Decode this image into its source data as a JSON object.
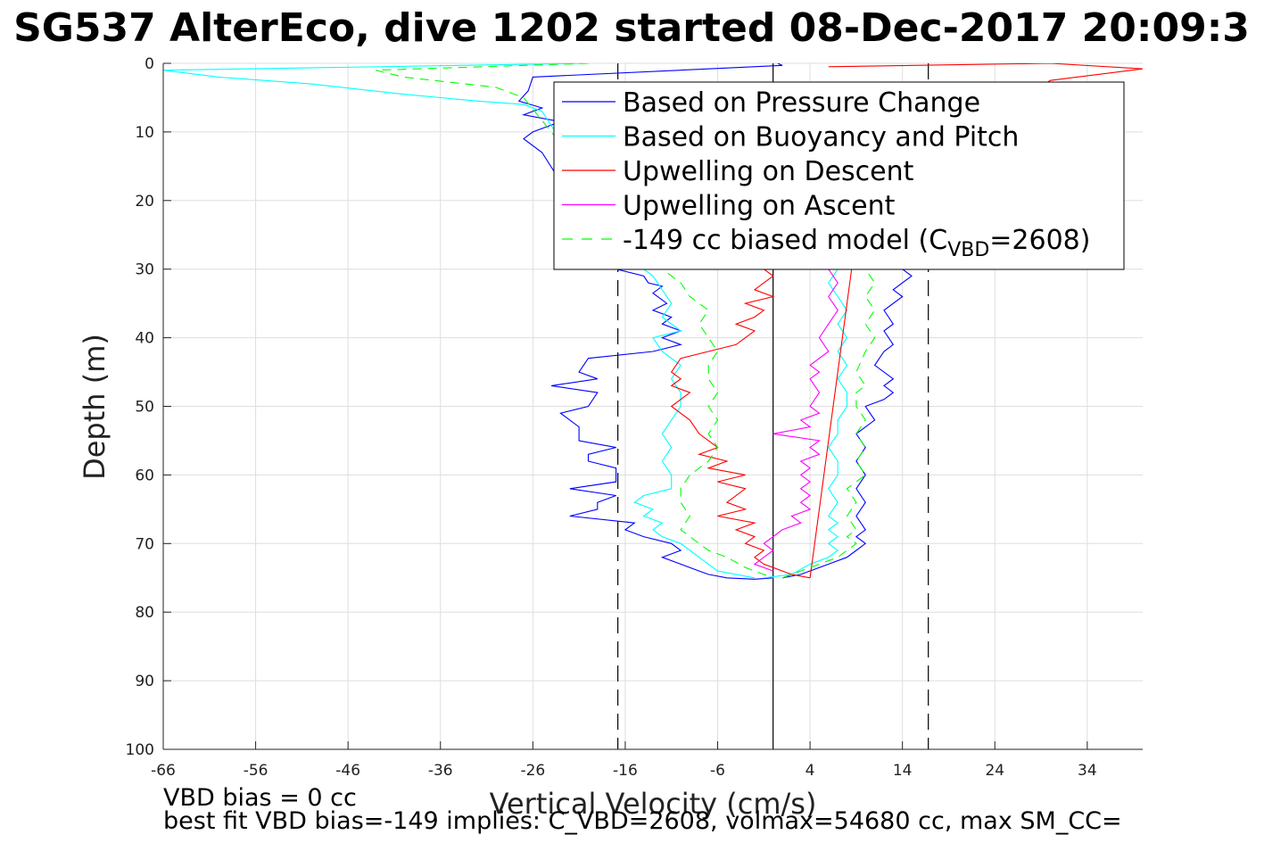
{
  "chart_data": {
    "type": "line",
    "title": "SG537 AlterEco, dive 1202 started 08-Dec-2017 20:09:3",
    "xlabel": "Vertical Velocity (cm/s)",
    "ylabel": "Depth (m)",
    "xlim": [
      -66,
      40
    ],
    "ylim": [
      0,
      100
    ],
    "y_reversed": true,
    "grid": true,
    "legend_position": "top-right",
    "xticks": [
      -66,
      -56,
      -46,
      -36,
      -26,
      -16,
      -6,
      4,
      14,
      24,
      34
    ],
    "yticks": [
      0,
      10,
      20,
      30,
      40,
      50,
      60,
      70,
      80,
      90,
      100
    ],
    "reference_lines": [
      {
        "x": 0,
        "style": "solid",
        "color": "#000000"
      },
      {
        "x": -16.8,
        "style": "dashed",
        "color": "#000000"
      },
      {
        "x": 16.8,
        "style": "dashed",
        "color": "#000000"
      }
    ],
    "legend": [
      {
        "label": "Based on Pressure Change",
        "color": "#0000ff",
        "dash": "solid"
      },
      {
        "label": "Based on Buoyancy and Pitch",
        "color": "#00ffff",
        "dash": "solid"
      },
      {
        "label": "Upwelling on Descent",
        "color": "#ff0000",
        "dash": "solid"
      },
      {
        "label": "Upwelling on Ascent",
        "color": "#ff00ff",
        "dash": "solid"
      },
      {
        "label_prefix": "-149 cc biased model (C",
        "label_sub": "VBD",
        "label_suffix": "=2608)",
        "color": "#00ff00",
        "dash": "dashed"
      }
    ],
    "series": [
      {
        "key": "pressure_descent",
        "color": "#0000ff",
        "dash": "solid",
        "points": [
          [
            0.5,
            0
          ],
          [
            1,
            0.3
          ],
          [
            -26,
            2
          ],
          [
            -26.5,
            4
          ],
          [
            -27.5,
            5.5
          ],
          [
            -25,
            6.5
          ],
          [
            -27,
            7.5
          ],
          [
            -23,
            8.5
          ],
          [
            -26,
            10
          ],
          [
            -27,
            11
          ],
          [
            -25,
            13
          ],
          [
            -17,
            30
          ],
          [
            -14,
            31
          ],
          [
            -13.5,
            32
          ],
          [
            -12,
            32.5
          ],
          [
            -13,
            33.5
          ],
          [
            -11.5,
            35
          ],
          [
            -13,
            36
          ],
          [
            -11,
            37
          ],
          [
            -12,
            38
          ],
          [
            -10,
            39
          ],
          [
            -12,
            40
          ],
          [
            -10,
            41
          ],
          [
            -13,
            42
          ],
          [
            -20,
            43
          ],
          [
            -21,
            45
          ],
          [
            -19,
            46
          ],
          [
            -24,
            47
          ],
          [
            -19,
            48
          ],
          [
            -20,
            50
          ],
          [
            -23,
            51
          ],
          [
            -21,
            53
          ],
          [
            -21,
            55
          ],
          [
            -17,
            56
          ],
          [
            -20,
            57
          ],
          [
            -20,
            58
          ],
          [
            -17,
            59
          ],
          [
            -17,
            61
          ],
          [
            -22,
            62
          ],
          [
            -17,
            63
          ],
          [
            -19,
            64
          ],
          [
            -19,
            65
          ],
          [
            -22,
            66
          ],
          [
            -15,
            67
          ],
          [
            -16,
            68
          ],
          [
            -14,
            69
          ],
          [
            -11,
            70
          ],
          [
            -10,
            71
          ],
          [
            -12,
            72
          ],
          [
            -10,
            73
          ],
          [
            -8,
            74
          ],
          [
            -7,
            74.5
          ],
          [
            -5,
            75
          ],
          [
            -2,
            75.2
          ],
          [
            0,
            75
          ]
        ]
      },
      {
        "key": "pressure_ascent",
        "color": "#0000ff",
        "dash": "solid",
        "points": [
          [
            1,
            75
          ],
          [
            3,
            74.5
          ],
          [
            6,
            73
          ],
          [
            8,
            72
          ],
          [
            9,
            71
          ],
          [
            10,
            70
          ],
          [
            9,
            69
          ],
          [
            10,
            68
          ],
          [
            9,
            66
          ],
          [
            10,
            64
          ],
          [
            9,
            62
          ],
          [
            10,
            60
          ],
          [
            9,
            58
          ],
          [
            10,
            56
          ],
          [
            9,
            54
          ],
          [
            11,
            52
          ],
          [
            10,
            50
          ],
          [
            12,
            49
          ],
          [
            13,
            48
          ],
          [
            12,
            47
          ],
          [
            13,
            46
          ],
          [
            11,
            44
          ],
          [
            12,
            42
          ],
          [
            13,
            41
          ],
          [
            12,
            39
          ],
          [
            13,
            38
          ],
          [
            12,
            36
          ],
          [
            14,
            34
          ],
          [
            13,
            33
          ],
          [
            15,
            31
          ],
          [
            14,
            30
          ]
        ]
      },
      {
        "key": "buoyancy_descent",
        "color": "#00ffff",
        "dash": "solid",
        "points": [
          [
            -20,
            0
          ],
          [
            -66,
            1
          ],
          [
            -60,
            2
          ],
          [
            -50,
            3
          ],
          [
            -40,
            4.5
          ],
          [
            -32,
            5.5
          ],
          [
            -27,
            6
          ],
          [
            -25,
            7
          ],
          [
            -14,
            30
          ],
          [
            -13,
            31
          ],
          [
            -12,
            33
          ],
          [
            -11,
            35
          ],
          [
            -12,
            37
          ],
          [
            -10,
            39
          ],
          [
            -13,
            40
          ],
          [
            -12,
            42
          ],
          [
            -10,
            44
          ],
          [
            -11,
            46
          ],
          [
            -10,
            48
          ],
          [
            -10,
            50
          ],
          [
            -11,
            52
          ],
          [
            -12,
            54
          ],
          [
            -11,
            56
          ],
          [
            -12,
            58
          ],
          [
            -11,
            60
          ],
          [
            -11,
            62
          ],
          [
            -14,
            63
          ],
          [
            -15,
            64
          ],
          [
            -13,
            65
          ],
          [
            -14,
            66
          ],
          [
            -12,
            67
          ],
          [
            -13,
            68
          ],
          [
            -12,
            69
          ],
          [
            -10,
            70
          ],
          [
            -9,
            71
          ],
          [
            -8,
            72
          ],
          [
            -7,
            73
          ],
          [
            -6,
            74
          ],
          [
            -4,
            74.5
          ],
          [
            -2,
            75
          ]
        ]
      },
      {
        "key": "buoyancy_ascent",
        "color": "#00ffff",
        "dash": "solid",
        "points": [
          [
            -1,
            75
          ],
          [
            2,
            74.5
          ],
          [
            4,
            73
          ],
          [
            6,
            72
          ],
          [
            7,
            71
          ],
          [
            6,
            70
          ],
          [
            7,
            69
          ],
          [
            6,
            68
          ],
          [
            7,
            67
          ],
          [
            6,
            66
          ],
          [
            7,
            64
          ],
          [
            6,
            62
          ],
          [
            7,
            60
          ],
          [
            7,
            58
          ],
          [
            6,
            56
          ],
          [
            7,
            54
          ],
          [
            7,
            52
          ],
          [
            8,
            50
          ],
          [
            8,
            48
          ],
          [
            7,
            46
          ],
          [
            8,
            44
          ],
          [
            7,
            42
          ],
          [
            8,
            40
          ],
          [
            7,
            38
          ],
          [
            8,
            36
          ],
          [
            7,
            34
          ],
          [
            6,
            32
          ],
          [
            7,
            30
          ]
        ]
      },
      {
        "key": "upwelling_descent",
        "color": "#ff0000",
        "dash": "solid",
        "points": [
          [
            6,
            0.5
          ],
          [
            30,
            0
          ],
          [
            40,
            0.8
          ],
          [
            30,
            2.5
          ],
          [
            -1,
            30
          ],
          [
            0,
            31
          ],
          [
            -1,
            32
          ],
          [
            -2,
            33
          ],
          [
            0,
            34
          ],
          [
            -3,
            35
          ],
          [
            -1,
            36
          ],
          [
            -2,
            37
          ],
          [
            -4,
            38
          ],
          [
            -2,
            39
          ],
          [
            -3,
            40
          ],
          [
            -4,
            41
          ],
          [
            -7,
            42
          ],
          [
            -10,
            43
          ],
          [
            -11,
            45
          ],
          [
            -10,
            46
          ],
          [
            -11,
            47
          ],
          [
            -9,
            48
          ],
          [
            -11,
            50
          ],
          [
            -9,
            52
          ],
          [
            -8,
            54
          ],
          [
            -6,
            56
          ],
          [
            -8,
            57
          ],
          [
            -5,
            58
          ],
          [
            -7,
            59
          ],
          [
            -3,
            60
          ],
          [
            -6,
            61
          ],
          [
            -3,
            62
          ],
          [
            -5,
            64
          ],
          [
            -3,
            65
          ],
          [
            -6,
            66
          ],
          [
            -2,
            67
          ],
          [
            -4,
            68
          ],
          [
            -2,
            69
          ],
          [
            -3,
            70
          ],
          [
            -1,
            71
          ],
          [
            -2,
            72
          ],
          [
            -1,
            73
          ],
          [
            0,
            73.5
          ],
          [
            1,
            74
          ],
          [
            2,
            74.5
          ],
          [
            4,
            75
          ]
        ]
      },
      {
        "key": "upwelling_ascent",
        "color": "#ff00ff",
        "dash": "solid",
        "points": [
          [
            0,
            74
          ],
          [
            -2,
            73
          ],
          [
            -1,
            72
          ],
          [
            0,
            71
          ],
          [
            -1,
            70
          ],
          [
            0,
            69
          ],
          [
            1,
            68
          ],
          [
            3,
            67
          ],
          [
            2,
            66
          ],
          [
            4,
            65
          ],
          [
            3,
            64
          ],
          [
            4,
            63
          ],
          [
            3,
            62
          ],
          [
            4,
            61
          ],
          [
            3,
            60
          ],
          [
            4,
            59
          ],
          [
            3,
            58
          ],
          [
            5,
            57
          ],
          [
            4,
            56
          ],
          [
            5,
            55
          ],
          [
            0,
            54
          ],
          [
            4,
            53
          ],
          [
            3,
            52
          ],
          [
            5,
            51
          ],
          [
            4,
            50
          ],
          [
            5,
            48
          ],
          [
            4,
            46
          ],
          [
            5,
            45
          ],
          [
            4,
            44
          ],
          [
            6,
            42
          ],
          [
            5,
            40
          ],
          [
            6,
            38
          ],
          [
            7,
            36
          ],
          [
            6,
            34
          ],
          [
            7,
            32
          ],
          [
            6,
            30
          ]
        ]
      },
      {
        "key": "upwelling_ascent_fit",
        "color": "#ff0000",
        "dash": "solid",
        "points": [
          [
            4,
            75
          ],
          [
            8.5,
            30
          ]
        ]
      },
      {
        "key": "model_descent",
        "color": "#00ff00",
        "dash": "dashed",
        "points": [
          [
            -20,
            0
          ],
          [
            -43,
            1
          ],
          [
            -40,
            2
          ],
          [
            -30,
            3.5
          ],
          [
            -27,
            5
          ],
          [
            -12,
            30
          ],
          [
            -10,
            32
          ],
          [
            -9,
            34
          ],
          [
            -7,
            36
          ],
          [
            -8,
            38
          ],
          [
            -7,
            40
          ],
          [
            -6,
            42
          ],
          [
            -7,
            44
          ],
          [
            -7,
            46
          ],
          [
            -6,
            48
          ],
          [
            -7,
            50
          ],
          [
            -6,
            52
          ],
          [
            -7,
            54
          ],
          [
            -6,
            56
          ],
          [
            -7,
            58
          ],
          [
            -9,
            60
          ],
          [
            -10,
            62
          ],
          [
            -10,
            64
          ],
          [
            -9,
            66
          ],
          [
            -10,
            68
          ],
          [
            -8,
            70
          ],
          [
            -7,
            71
          ],
          [
            -5,
            72
          ],
          [
            -3,
            73.5
          ],
          [
            -1,
            74.5
          ],
          [
            0,
            75
          ]
        ]
      },
      {
        "key": "model_ascent",
        "color": "#00ff00",
        "dash": "dashed",
        "points": [
          [
            1,
            75
          ],
          [
            3,
            74
          ],
          [
            5,
            73
          ],
          [
            7,
            72
          ],
          [
            8,
            71
          ],
          [
            9,
            70
          ],
          [
            8,
            69
          ],
          [
            9,
            68
          ],
          [
            8,
            66
          ],
          [
            9,
            64
          ],
          [
            8,
            62
          ],
          [
            10,
            60
          ],
          [
            9,
            58
          ],
          [
            10,
            56
          ],
          [
            9,
            54
          ],
          [
            10,
            52
          ],
          [
            9,
            50
          ],
          [
            9,
            48
          ],
          [
            10,
            47
          ],
          [
            9,
            45
          ],
          [
            10,
            42
          ],
          [
            11,
            40
          ],
          [
            10,
            38
          ],
          [
            11,
            36
          ],
          [
            10,
            34
          ],
          [
            11,
            32
          ],
          [
            10,
            30
          ]
        ]
      }
    ]
  },
  "notes": {
    "line1": "VBD bias = 0 cc",
    "line2": "best fit VBD bias=-149 implies: C_VBD=2608, volmax=54680 cc, max SM_CC="
  }
}
